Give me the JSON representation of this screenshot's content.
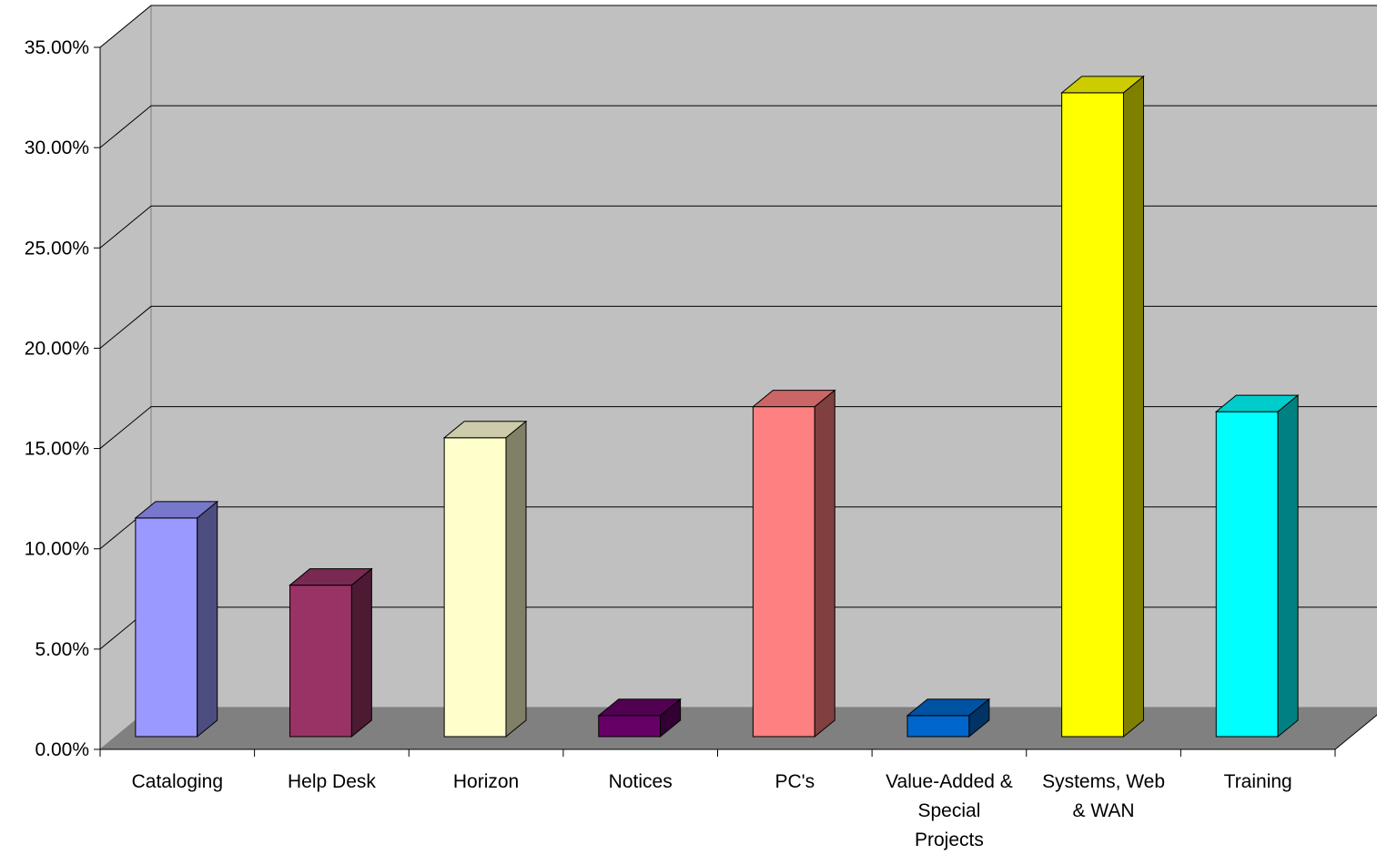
{
  "chart_data": {
    "type": "bar",
    "style": "3d-column",
    "categories": [
      [
        "Cataloging"
      ],
      [
        "Help Desk"
      ],
      [
        "Horizon"
      ],
      [
        "Notices"
      ],
      [
        "PC's"
      ],
      [
        "Value-Added &",
        "Special",
        "Projects"
      ],
      [
        "Systems, Web",
        "& WAN"
      ],
      [
        "Training"
      ]
    ],
    "values": [
      0.109,
      0.0755,
      0.149,
      0.0105,
      0.1645,
      0.0105,
      0.321,
      0.162
    ],
    "colors": [
      {
        "front": "#9999ff",
        "top": "#7777cc",
        "side": "#4d4d80"
      },
      {
        "front": "#993366",
        "top": "#7a2952",
        "side": "#4d1a33"
      },
      {
        "front": "#ffffcc",
        "top": "#ccccaa",
        "side": "#808066"
      },
      {
        "front": "#660066",
        "top": "#520052",
        "side": "#330033"
      },
      {
        "front": "#ff8080",
        "top": "#cc6666",
        "side": "#804040"
      },
      {
        "front": "#0066cc",
        "top": "#0052a3",
        "side": "#003366"
      },
      {
        "front": "#ffff00",
        "top": "#cccc00",
        "side": "#808000"
      },
      {
        "front": "#00ffff",
        "top": "#00cccc",
        "side": "#008080"
      }
    ],
    "y_tick_labels": [
      "0.00%",
      "5.00%",
      "10.00%",
      "15.00%",
      "20.00%",
      "25.00%",
      "30.00%",
      "35.00%"
    ],
    "ylim": [
      0,
      0.35
    ],
    "grid": true,
    "legend": "none",
    "wall_color": "#c0c0c0",
    "floor_color": "#808080",
    "title": "",
    "xlabel": "",
    "ylabel": ""
  }
}
